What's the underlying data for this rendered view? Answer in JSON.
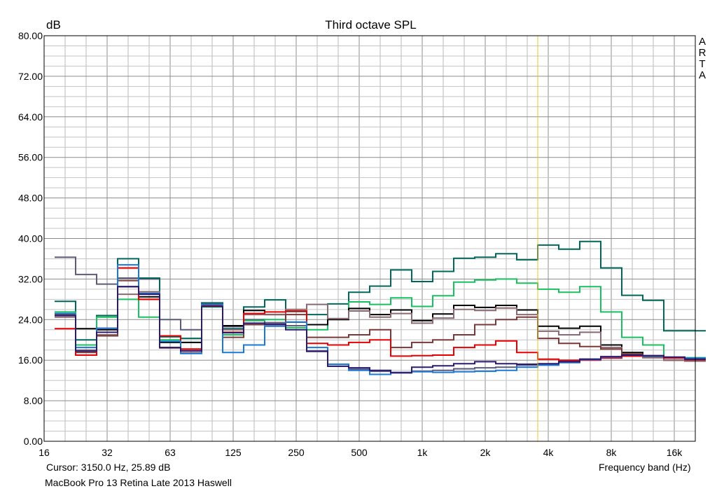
{
  "chart_data": {
    "type": "line",
    "title": "Third octave SPL",
    "ylabel": "dB",
    "xlabel": "Frequency band (Hz)",
    "brand": [
      "A",
      "R",
      "T",
      "A"
    ],
    "cursor_text": "Cursor:  3150.0 Hz, 25.89 dB",
    "device_text": "MacBook Pro 13 Retina Late 2013 Haswell",
    "ylim": [
      0,
      80
    ],
    "y_ticks": [
      "0.00",
      "8.00",
      "16.00",
      "24.00",
      "32.00",
      "40.00",
      "48.00",
      "56.00",
      "64.00",
      "72.00",
      "80.00"
    ],
    "x_tick_labels": [
      "16",
      "32",
      "63",
      "125",
      "250",
      "500",
      "1k",
      "2k",
      "4k",
      "8k",
      "16k"
    ],
    "bands": [
      "16",
      "20",
      "25",
      "31.5",
      "40",
      "50",
      "63",
      "80",
      "100",
      "125",
      "160",
      "200",
      "250",
      "315",
      "400",
      "500",
      "630",
      "800",
      "1k",
      "1.25k",
      "1.6k",
      "2k",
      "2.5k",
      "3.15k",
      "4k",
      "5k",
      "6.3k",
      "8k",
      "10k",
      "12.5k",
      "16k"
    ],
    "cursor_band": "3.15k",
    "grid": true,
    "cursor_color": "#e8c430",
    "series": [
      {
        "color": "#5c5c7a",
        "values": [
          36.3,
          32.9,
          31.0,
          32.2,
          32.0,
          24.0,
          22.0,
          27.1,
          22.6,
          24.0,
          23.4,
          22.8,
          17.7,
          14.8,
          14.2,
          13.8,
          13.6,
          13.8,
          14.0,
          14.3,
          14.5,
          14.6,
          15.0,
          15.2,
          15.8,
          16.2,
          16.5,
          16.8,
          16.8,
          16.5,
          16.3
        ]
      },
      {
        "color": "#00675a",
        "values": [
          27.6,
          20.0,
          24.8,
          36.0,
          32.2,
          20.6,
          20.3,
          27.3,
          22.2,
          26.5,
          27.9,
          25.6,
          25.0,
          27.1,
          29.4,
          30.6,
          33.8,
          31.5,
          33.5,
          36.1,
          36.3,
          37.0,
          35.8,
          38.7,
          37.9,
          39.4,
          34.2,
          28.8,
          27.8,
          21.8,
          21.8
        ]
      },
      {
        "color": "#18c060",
        "values": [
          25.5,
          19.0,
          24.5,
          28.0,
          24.5,
          20.0,
          19.5,
          26.5,
          21.0,
          23.8,
          24.0,
          22.4,
          22.0,
          24.2,
          27.5,
          27.0,
          28.3,
          26.6,
          28.7,
          31.4,
          31.8,
          32.0,
          31.2,
          30.0,
          29.4,
          30.5,
          25.5,
          20.5,
          19.0,
          16.5,
          16.5
        ]
      },
      {
        "color": "#000000",
        "values": [
          25.0,
          22.2,
          22.0,
          30.5,
          28.5,
          19.5,
          19.5,
          27.0,
          22.8,
          25.8,
          25.0,
          23.5,
          23.0,
          24.0,
          26.2,
          25.0,
          25.9,
          23.8,
          25.1,
          26.8,
          26.4,
          26.8,
          25.9,
          22.7,
          22.3,
          22.7,
          19.0,
          17.5,
          16.5,
          16.0,
          16.0
        ]
      },
      {
        "color": "#8a6a70",
        "values": [
          24.5,
          18.0,
          21.0,
          29.0,
          29.5,
          18.5,
          18.0,
          27.0,
          22.0,
          25.0,
          25.0,
          26.0,
          27.0,
          24.2,
          25.7,
          24.5,
          25.2,
          23.3,
          24.3,
          26.0,
          25.8,
          26.3,
          25.0,
          21.7,
          21.0,
          21.5,
          18.5,
          17.0,
          16.5,
          16.0,
          15.8
        ]
      },
      {
        "color": "#7a3838",
        "values": [
          25.0,
          17.5,
          20.8,
          31.7,
          28.0,
          18.4,
          17.4,
          27.0,
          20.5,
          23.0,
          23.0,
          25.0,
          20.5,
          20.5,
          21.0,
          22.0,
          18.5,
          19.5,
          20.0,
          21.0,
          23.0,
          24.0,
          24.5,
          20.3,
          19.3,
          18.7,
          18.2,
          17.2,
          16.8,
          16.6,
          16.3
        ]
      },
      {
        "color": "#e80000",
        "values": [
          22.2,
          17.0,
          22.3,
          34.2,
          28.0,
          20.8,
          18.2,
          26.8,
          21.5,
          25.2,
          25.5,
          25.7,
          19.3,
          19.0,
          19.5,
          20.0,
          16.8,
          16.9,
          17.0,
          18.5,
          19.0,
          19.8,
          17.5,
          16.2,
          16.0,
          16.0,
          16.4,
          16.8,
          16.9,
          16.4,
          16.1
        ]
      },
      {
        "color": "#1a78d6",
        "values": [
          25.2,
          18.5,
          22.3,
          34.8,
          29.2,
          19.7,
          17.3,
          27.0,
          17.5,
          19.0,
          22.7,
          23.5,
          18.5,
          15.2,
          14.0,
          13.2,
          13.5,
          13.7,
          13.6,
          13.7,
          13.8,
          14.0,
          14.6,
          15.0,
          15.5,
          16.1,
          16.6,
          17.0,
          16.8,
          16.6,
          16.4
        ]
      },
      {
        "color": "#2a1a70",
        "values": [
          24.8,
          17.8,
          21.5,
          30.5,
          29.0,
          18.5,
          17.8,
          26.6,
          21.4,
          23.3,
          23.1,
          22.0,
          17.8,
          14.8,
          14.5,
          14.0,
          13.5,
          14.6,
          14.9,
          15.3,
          15.7,
          15.3,
          15.2,
          15.3,
          15.7,
          16.2,
          16.7,
          17.0,
          16.9,
          16.6,
          16.2
        ]
      }
    ]
  }
}
